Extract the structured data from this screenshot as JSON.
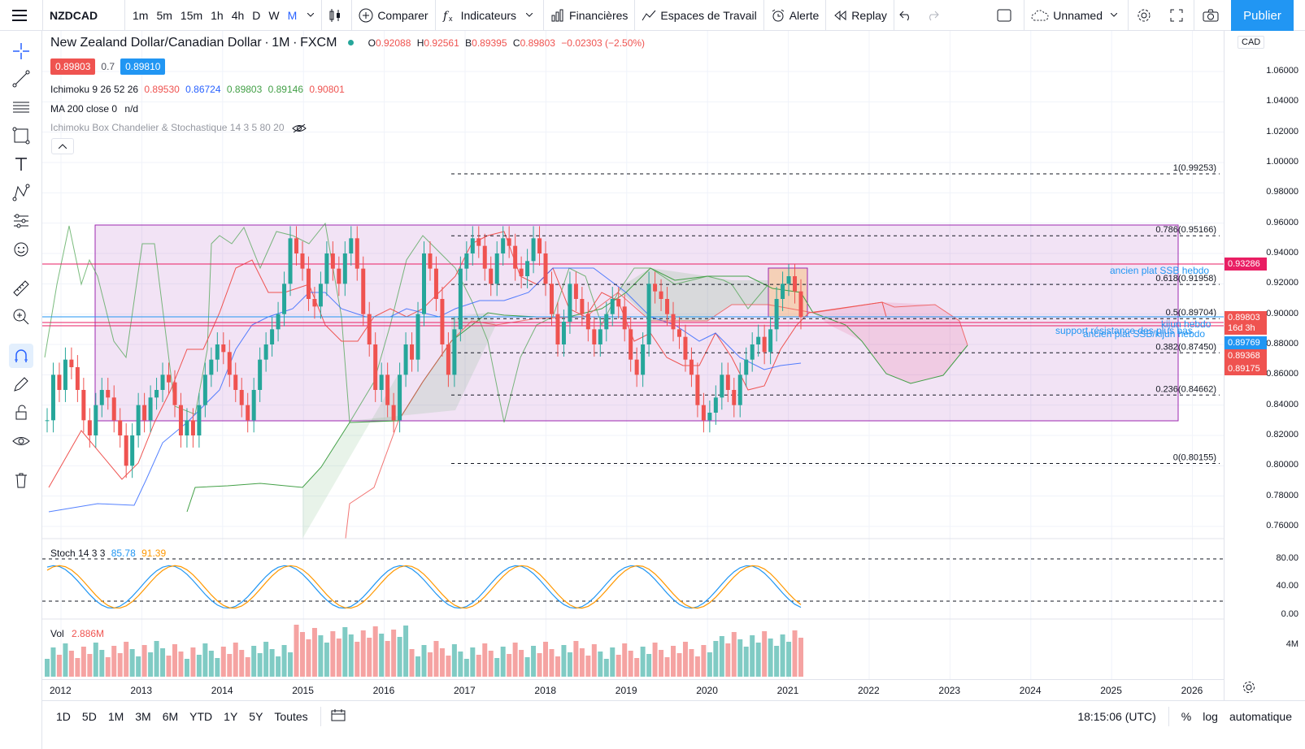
{
  "toolbar": {
    "symbol": "NZDCAD",
    "intervals": [
      "1m",
      "5m",
      "15m",
      "1h",
      "4h",
      "D",
      "W",
      "M"
    ],
    "active_interval": "M",
    "compare": "Comparer",
    "indicators": "Indicateurs",
    "financials": "Financières",
    "workspaces": "Espaces de Travail",
    "alert": "Alerte",
    "replay": "Replay",
    "layout_name": "Unnamed",
    "publish": "Publier"
  },
  "legend": {
    "title": "New Zealand Dollar/Canadian Dollar",
    "interval": "1M",
    "exchange": "FXCM",
    "o_label": "O",
    "o": "0.92088",
    "h_label": "H",
    "h": "0.92561",
    "l_label": "B",
    "l": "0.89395",
    "c_label": "C",
    "c": "0.89803",
    "change": "−0.02303 (−2.50%)",
    "bid": "0.89803",
    "spread": "0.7",
    "ask": "0.89810",
    "ichimoku_name": "Ichimoku 9 26 52 26",
    "ichimoku_values": [
      "0.89530",
      "0.86724",
      "0.89803",
      "0.89146",
      "0.90801"
    ],
    "ma_name": "MA 200 close 0",
    "ma_value": "n/d",
    "hidden_indicator": "Ichimoku Box Chandelier & Stochastique 14 3 5 80 20",
    "stoch_name": "Stoch 14 3 3",
    "stoch_k": "85.78",
    "stoch_d": "91.39",
    "vol_name": "Vol",
    "vol_value": "2.886M"
  },
  "price_scale": {
    "currency": "CAD",
    "ticks": [
      "1.06000",
      "1.04000",
      "1.02000",
      "1.00000",
      "0.98000",
      "0.96000",
      "0.94000",
      "0.92000",
      "0.90000",
      "0.88000",
      "0.86000",
      "0.84000",
      "0.82000",
      "0.80000",
      "0.78000",
      "0.76000"
    ],
    "labels": [
      {
        "text": "0.93286",
        "color": "#e91e63"
      },
      {
        "text": "0.89803",
        "color": "#ef5350"
      },
      {
        "text": "16d 3h",
        "color": "#ef5350"
      },
      {
        "text": "0.89769",
        "color": "#2196f3"
      },
      {
        "text": "0.89368",
        "color": "#ef5350"
      },
      {
        "text": "0.89175",
        "color": "#ef5350"
      }
    ],
    "stoch_ticks": [
      "80.00",
      "40.00",
      "0.00"
    ],
    "vol_tick": "4M"
  },
  "fib_levels": [
    {
      "label": "1(0.99253)",
      "price": 0.99253
    },
    {
      "label": "0.786(0.95166)",
      "price": 0.95166
    },
    {
      "label": "0.618(0.91958)",
      "price": 0.91958
    },
    {
      "label": "0.5(0.89704)",
      "price": 0.89704
    },
    {
      "label": "0.382(0.87450)",
      "price": 0.8745
    },
    {
      "label": "0.236(0.84662)",
      "price": 0.84662
    },
    {
      "label": "0(0.80155)",
      "price": 0.80155
    }
  ],
  "annotations": {
    "a1": "ancien plat SSB hebdo",
    "a2": "kijun hebdo",
    "a3": "support résistance des plus bas",
    "a4": "ancien plat SSB/kijun hebdo"
  },
  "time_axis": [
    "2012",
    "2013",
    "2014",
    "2015",
    "2016",
    "2017",
    "2018",
    "2019",
    "2020",
    "2021",
    "2022",
    "2023",
    "2024",
    "2025",
    "2026"
  ],
  "bottom": {
    "ranges": [
      "1D",
      "5D",
      "1M",
      "3M",
      "6M",
      "YTD",
      "1Y",
      "5Y",
      "Toutes"
    ],
    "clock": "18:15:06 (UTC)",
    "percent": "%",
    "log": "log",
    "auto": "automatique"
  },
  "colors": {
    "up": "#26a69a",
    "down": "#ef5350",
    "box": "#9c27b0",
    "accent": "#2962ff"
  },
  "chart_data": {
    "type": "candlestick",
    "symbol": "NZDCAD",
    "timeframe": "monthly",
    "x_range": [
      "2012",
      "2021"
    ],
    "y_range": [
      0.76,
      1.06
    ],
    "series": [
      {
        "name": "close_approx",
        "x": [
          "2012-01",
          "2013-01",
          "2014-01",
          "2014-06",
          "2015-01",
          "2015-06",
          "2016-01",
          "2016-11",
          "2017-06",
          "2018-01",
          "2018-06",
          "2019-01",
          "2019-06",
          "2020-01",
          "2020-03",
          "2020-10",
          "2021-01",
          "2021-02"
        ],
        "values": [
          0.82,
          0.83,
          0.87,
          0.95,
          0.92,
          0.84,
          0.9,
          0.95,
          0.93,
          0.89,
          0.9,
          0.91,
          0.88,
          0.84,
          0.86,
          0.89,
          0.91,
          0.898
        ]
      }
    ]
  }
}
